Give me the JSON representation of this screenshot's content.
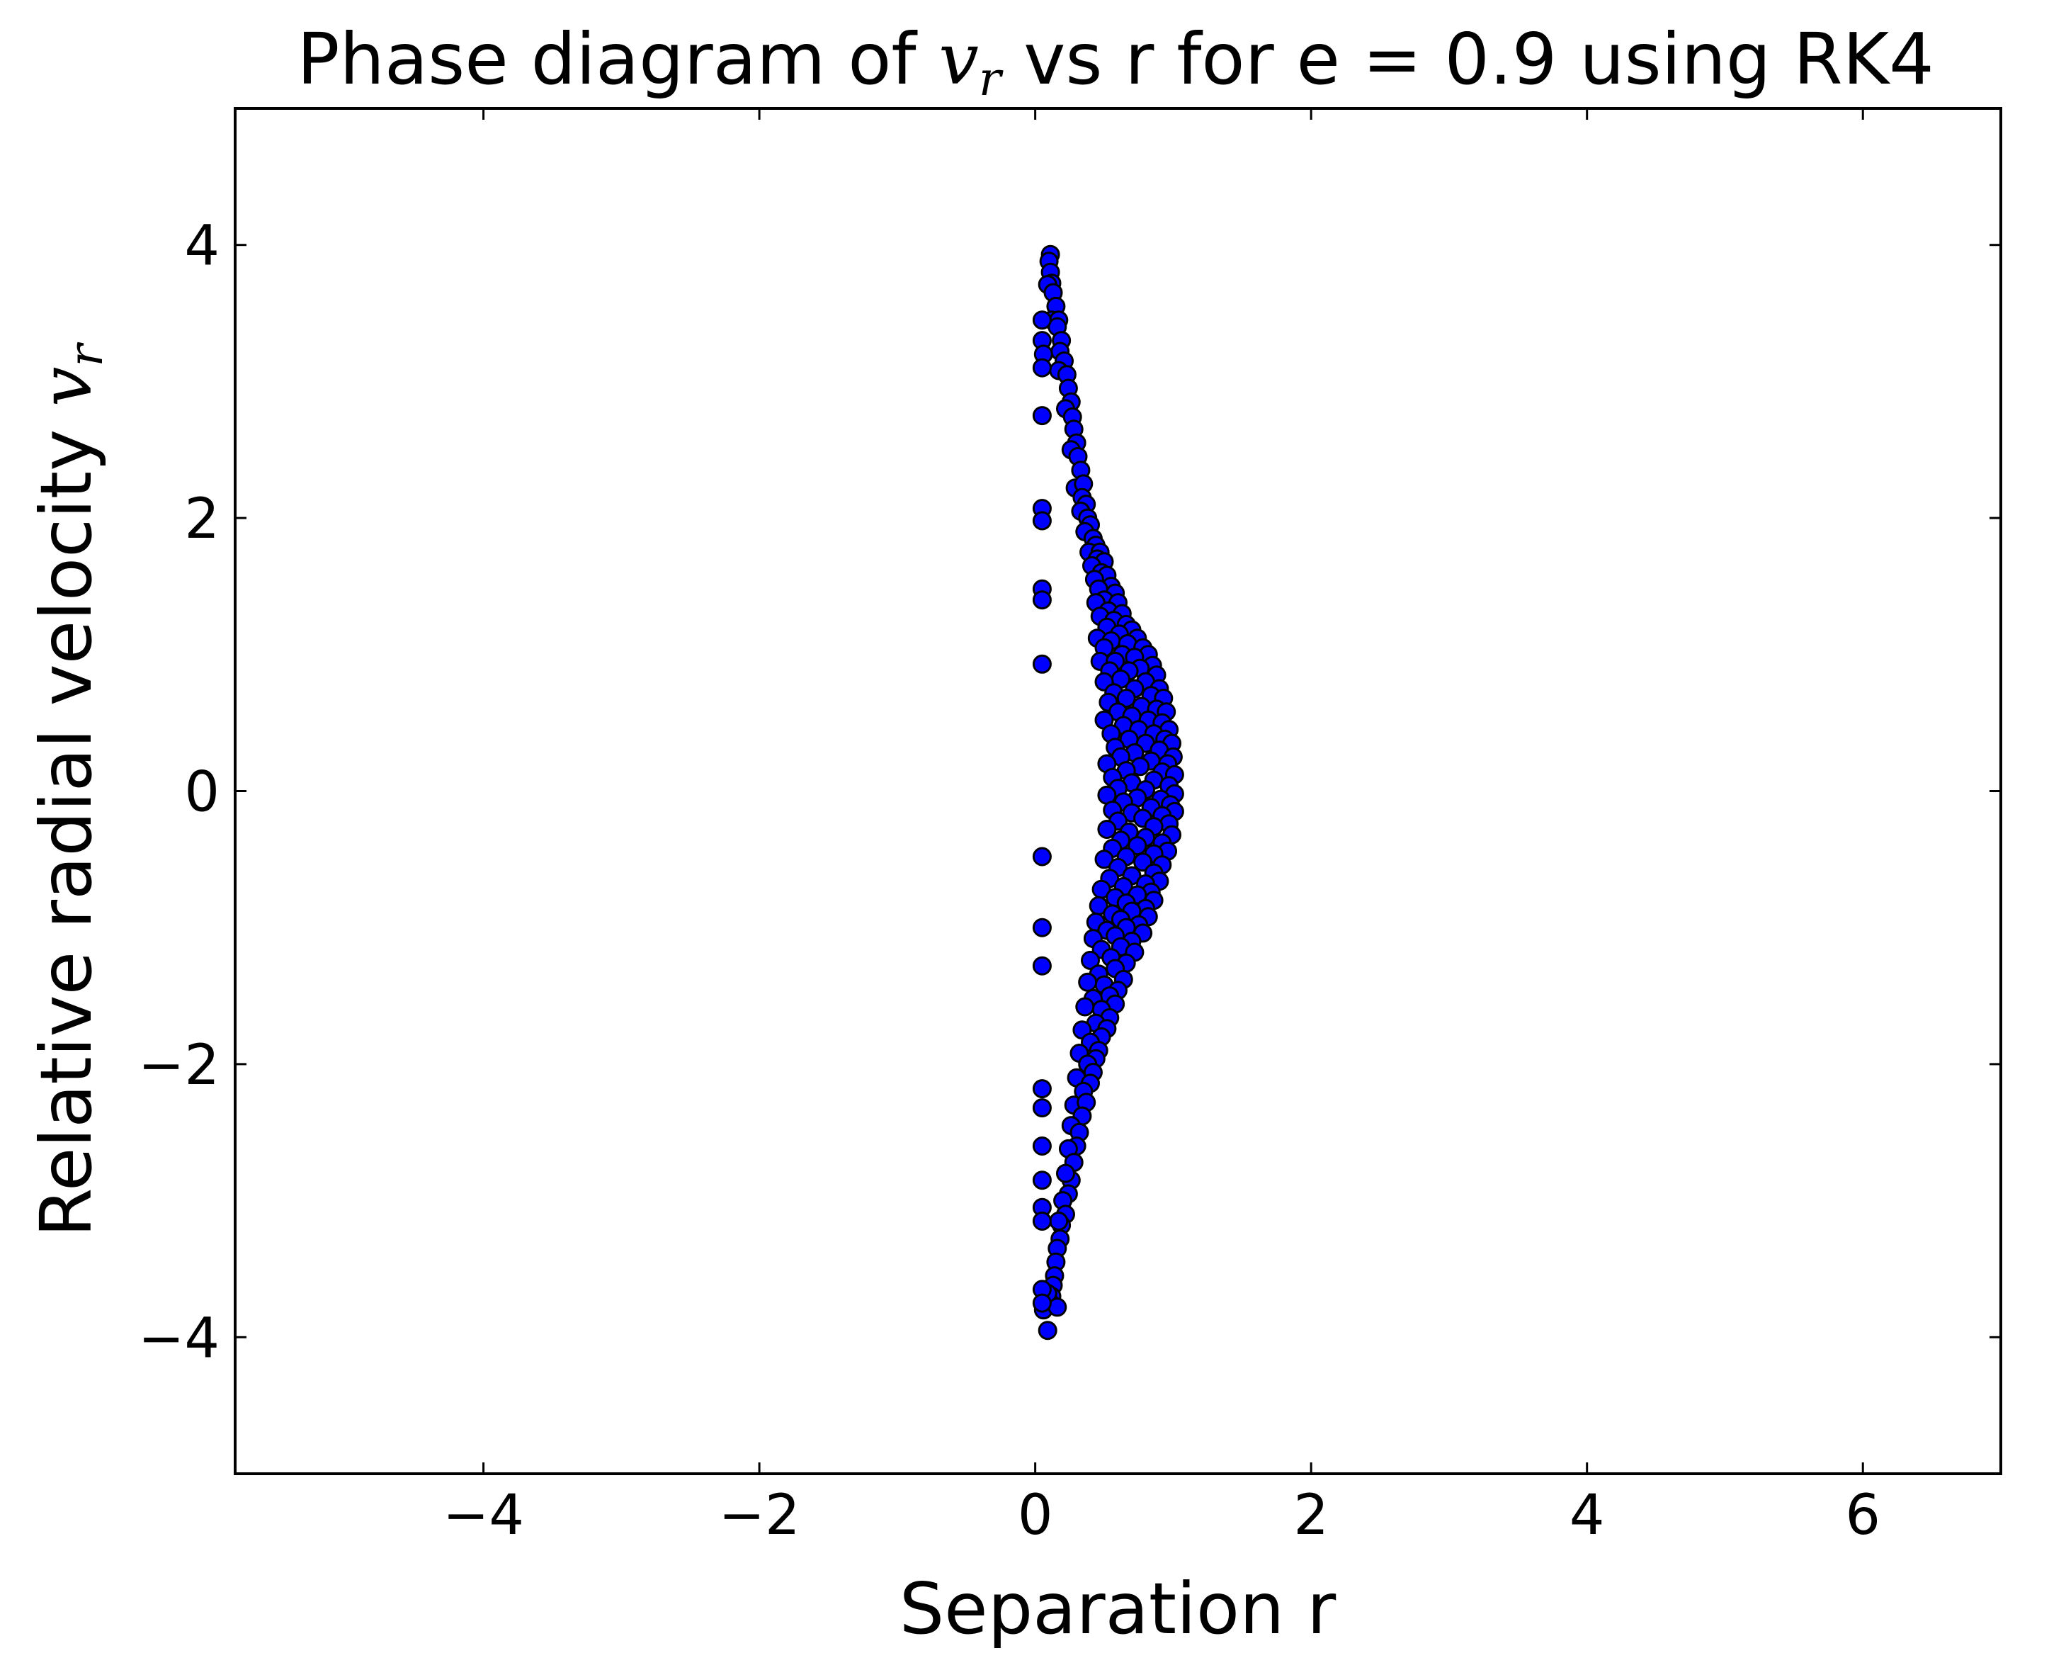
{
  "chart_data": {
    "type": "scatter",
    "title": {
      "prefix": "Phase diagram of ",
      "math_base": "v",
      "math_sub": "r",
      "suffix": " vs r for e = 0.9 using RK4"
    },
    "xlabel": "Separation r",
    "ylabel": {
      "prefix": "Relative radial velocity ",
      "math_base": "v",
      "math_sub": "r"
    },
    "xlim": [
      -5.8,
      7.0
    ],
    "ylim": [
      -5.0,
      5.0
    ],
    "x_ticks": [
      {
        "value": -4,
        "label": "−4"
      },
      {
        "value": -2,
        "label": "−2"
      },
      {
        "value": 0,
        "label": "0"
      },
      {
        "value": 2,
        "label": "2"
      },
      {
        "value": 4,
        "label": "4"
      },
      {
        "value": 6,
        "label": "6"
      }
    ],
    "y_ticks": [
      {
        "value": -4,
        "label": "−4"
      },
      {
        "value": -2,
        "label": "−2"
      },
      {
        "value": 0,
        "label": "0"
      },
      {
        "value": 2,
        "label": "2"
      },
      {
        "value": 4,
        "label": "4"
      }
    ],
    "grid": false,
    "legend": "none",
    "marker_color": "#0000ff",
    "marker_edge_color": "#000000",
    "series": [
      {
        "points": [
          [
            0.11,
            3.93
          ],
          [
            0.1,
            3.88
          ],
          [
            0.11,
            3.8
          ],
          [
            0.12,
            3.72
          ],
          [
            0.09,
            3.71
          ],
          [
            0.13,
            3.65
          ],
          [
            0.15,
            3.55
          ],
          [
            0.12,
            3.45
          ],
          [
            0.17,
            3.45
          ],
          [
            0.16,
            3.4
          ],
          [
            0.19,
            3.3
          ],
          [
            0.18,
            3.22
          ],
          [
            0.21,
            3.15
          ],
          [
            0.17,
            3.08
          ],
          [
            0.23,
            3.05
          ],
          [
            0.24,
            2.95
          ],
          [
            0.26,
            2.85
          ],
          [
            0.22,
            2.8
          ],
          [
            0.27,
            2.74
          ],
          [
            0.28,
            2.65
          ],
          [
            0.3,
            2.55
          ],
          [
            0.26,
            2.5
          ],
          [
            0.31,
            2.45
          ],
          [
            0.33,
            2.35
          ],
          [
            0.29,
            2.22
          ],
          [
            0.35,
            2.25
          ],
          [
            0.34,
            2.15
          ],
          [
            0.37,
            2.1
          ],
          [
            0.33,
            2.05
          ],
          [
            0.38,
            2.0
          ],
          [
            0.4,
            1.95
          ],
          [
            0.36,
            1.9
          ],
          [
            0.42,
            1.85
          ],
          [
            0.44,
            1.8
          ],
          [
            0.39,
            1.75
          ],
          [
            0.47,
            1.75
          ],
          [
            0.45,
            1.7
          ],
          [
            0.5,
            1.68
          ],
          [
            0.41,
            1.65
          ],
          [
            0.48,
            1.6
          ],
          [
            0.52,
            1.58
          ],
          [
            0.43,
            1.55
          ],
          [
            0.55,
            1.5
          ],
          [
            0.46,
            1.48
          ],
          [
            0.58,
            1.45
          ],
          [
            0.5,
            1.4
          ],
          [
            0.44,
            1.38
          ],
          [
            0.6,
            1.38
          ],
          [
            0.53,
            1.32
          ],
          [
            0.63,
            1.3
          ],
          [
            0.47,
            1.28
          ],
          [
            0.57,
            1.25
          ],
          [
            0.66,
            1.22
          ],
          [
            0.52,
            1.2
          ],
          [
            0.7,
            1.18
          ],
          [
            0.61,
            1.15
          ],
          [
            0.74,
            1.12
          ],
          [
            0.45,
            1.12
          ],
          [
            0.55,
            1.1
          ],
          [
            0.67,
            1.08
          ],
          [
            0.78,
            1.05
          ],
          [
            0.5,
            1.05
          ],
          [
            0.63,
            1.0
          ],
          [
            0.82,
            1.0
          ],
          [
            0.72,
            0.98
          ],
          [
            0.47,
            0.95
          ],
          [
            0.58,
            0.95
          ],
          [
            0.85,
            0.92
          ],
          [
            0.76,
            0.9
          ],
          [
            0.54,
            0.88
          ],
          [
            0.68,
            0.88
          ],
          [
            0.88,
            0.85
          ],
          [
            0.62,
            0.82
          ],
          [
            0.8,
            0.8
          ],
          [
            0.5,
            0.8
          ],
          [
            0.9,
            0.75
          ],
          [
            0.72,
            0.75
          ],
          [
            0.57,
            0.72
          ],
          [
            0.84,
            0.7
          ],
          [
            0.93,
            0.68
          ],
          [
            0.66,
            0.68
          ],
          [
            0.53,
            0.65
          ],
          [
            0.77,
            0.62
          ],
          [
            0.88,
            0.6
          ],
          [
            0.95,
            0.58
          ],
          [
            0.6,
            0.58
          ],
          [
            0.7,
            0.55
          ],
          [
            0.82,
            0.52
          ],
          [
            0.5,
            0.52
          ],
          [
            0.92,
            0.5
          ],
          [
            0.64,
            0.48
          ],
          [
            0.97,
            0.45
          ],
          [
            0.75,
            0.45
          ],
          [
            0.55,
            0.42
          ],
          [
            0.86,
            0.42
          ],
          [
            0.68,
            0.38
          ],
          [
            0.94,
            0.38
          ],
          [
            0.99,
            0.35
          ],
          [
            0.8,
            0.35
          ],
          [
            0.58,
            0.32
          ],
          [
            0.9,
            0.3
          ],
          [
            0.72,
            0.28
          ],
          [
            1.0,
            0.25
          ],
          [
            0.62,
            0.25
          ],
          [
            0.84,
            0.22
          ],
          [
            0.96,
            0.2
          ],
          [
            0.52,
            0.2
          ],
          [
            0.76,
            0.18
          ],
          [
            0.66,
            0.15
          ],
          [
            0.92,
            0.14
          ],
          [
            1.01,
            0.12
          ],
          [
            0.56,
            0.1
          ],
          [
            0.86,
            0.08
          ],
          [
            0.7,
            0.06
          ],
          [
            0.97,
            0.04
          ],
          [
            0.6,
            0.02
          ],
          [
            0.8,
            0.01
          ],
          [
            1.01,
            -0.02
          ],
          [
            0.52,
            -0.03
          ],
          [
            0.74,
            -0.05
          ],
          [
            0.91,
            -0.06
          ],
          [
            0.64,
            -0.08
          ],
          [
            0.98,
            -0.1
          ],
          [
            0.84,
            -0.12
          ],
          [
            0.56,
            -0.14
          ],
          [
            1.01,
            -0.15
          ],
          [
            0.7,
            -0.16
          ],
          [
            0.92,
            -0.18
          ],
          [
            0.78,
            -0.2
          ],
          [
            0.6,
            -0.22
          ],
          [
            0.97,
            -0.24
          ],
          [
            0.86,
            -0.26
          ],
          [
            0.52,
            -0.28
          ],
          [
            0.68,
            -0.3
          ],
          [
            0.99,
            -0.32
          ],
          [
            0.8,
            -0.34
          ],
          [
            0.62,
            -0.36
          ],
          [
            0.92,
            -0.38
          ],
          [
            0.74,
            -0.4
          ],
          [
            0.56,
            -0.42
          ],
          [
            0.96,
            -0.44
          ],
          [
            0.86,
            -0.46
          ],
          [
            0.66,
            -0.48
          ],
          [
            0.5,
            -0.5
          ],
          [
            0.78,
            -0.52
          ],
          [
            0.92,
            -0.54
          ],
          [
            0.6,
            -0.56
          ],
          [
            0.86,
            -0.6
          ],
          [
            0.7,
            -0.62
          ],
          [
            0.54,
            -0.64
          ],
          [
            0.9,
            -0.66
          ],
          [
            0.8,
            -0.68
          ],
          [
            0.64,
            -0.7
          ],
          [
            0.48,
            -0.72
          ],
          [
            0.84,
            -0.74
          ],
          [
            0.74,
            -0.76
          ],
          [
            0.58,
            -0.78
          ],
          [
            0.86,
            -0.8
          ],
          [
            0.66,
            -0.82
          ],
          [
            0.46,
            -0.84
          ],
          [
            0.8,
            -0.86
          ],
          [
            0.7,
            -0.88
          ],
          [
            0.56,
            -0.9
          ],
          [
            0.82,
            -0.92
          ],
          [
            0.62,
            -0.94
          ],
          [
            0.44,
            -0.96
          ],
          [
            0.75,
            -0.98
          ],
          [
            0.66,
            -1.0
          ],
          [
            0.52,
            -1.02
          ],
          [
            0.78,
            -1.04
          ],
          [
            0.58,
            -1.06
          ],
          [
            0.42,
            -1.08
          ],
          [
            0.7,
            -1.1
          ],
          [
            0.62,
            -1.14
          ],
          [
            0.48,
            -1.16
          ],
          [
            0.72,
            -1.18
          ],
          [
            0.55,
            -1.22
          ],
          [
            0.4,
            -1.24
          ],
          [
            0.66,
            -1.26
          ],
          [
            0.58,
            -1.3
          ],
          [
            0.46,
            -1.34
          ],
          [
            0.64,
            -1.38
          ],
          [
            0.5,
            -1.42
          ],
          [
            0.38,
            -1.4
          ],
          [
            0.6,
            -1.46
          ],
          [
            0.54,
            -1.5
          ],
          [
            0.42,
            -1.52
          ],
          [
            0.58,
            -1.56
          ],
          [
            0.48,
            -1.6
          ],
          [
            0.36,
            -1.58
          ],
          [
            0.54,
            -1.66
          ],
          [
            0.44,
            -1.7
          ],
          [
            0.52,
            -1.74
          ],
          [
            0.34,
            -1.75
          ],
          [
            0.48,
            -1.8
          ],
          [
            0.4,
            -1.84
          ],
          [
            0.46,
            -1.9
          ],
          [
            0.32,
            -1.92
          ],
          [
            0.44,
            -1.96
          ],
          [
            0.38,
            -2.0
          ],
          [
            0.42,
            -2.06
          ],
          [
            0.3,
            -2.1
          ],
          [
            0.4,
            -2.14
          ],
          [
            0.35,
            -2.2
          ],
          [
            0.28,
            -2.3
          ],
          [
            0.37,
            -2.28
          ],
          [
            0.34,
            -2.38
          ],
          [
            0.26,
            -2.45
          ],
          [
            0.32,
            -2.5
          ],
          [
            0.3,
            -2.6
          ],
          [
            0.24,
            -2.62
          ],
          [
            0.28,
            -2.72
          ],
          [
            0.26,
            -2.85
          ],
          [
            0.22,
            -2.8
          ],
          [
            0.24,
            -2.95
          ],
          [
            0.2,
            -3.0
          ],
          [
            0.22,
            -3.1
          ],
          [
            0.19,
            -3.18
          ],
          [
            0.17,
            -3.15
          ],
          [
            0.18,
            -3.28
          ],
          [
            0.16,
            -3.35
          ],
          [
            0.15,
            -3.45
          ],
          [
            0.14,
            -3.55
          ],
          [
            0.13,
            -3.62
          ],
          [
            0.12,
            -3.7
          ],
          [
            0.11,
            -3.75
          ],
          [
            0.09,
            -3.68
          ],
          [
            0.09,
            -3.95
          ],
          [
            0.06,
            -3.8
          ],
          [
            0.16,
            -3.78
          ],
          [
            0.05,
            3.45
          ],
          [
            0.05,
            3.3
          ],
          [
            0.06,
            3.2
          ],
          [
            0.05,
            3.1
          ],
          [
            0.05,
            2.75
          ],
          [
            0.05,
            2.07
          ],
          [
            0.05,
            1.98
          ],
          [
            0.05,
            1.48
          ],
          [
            0.05,
            1.4
          ],
          [
            0.05,
            0.93
          ],
          [
            0.05,
            -0.48
          ],
          [
            0.05,
            -1.0
          ],
          [
            0.05,
            -1.28
          ],
          [
            0.05,
            -2.18
          ],
          [
            0.05,
            -2.32
          ],
          [
            0.05,
            -2.6
          ],
          [
            0.05,
            -2.85
          ],
          [
            0.05,
            -3.05
          ],
          [
            0.05,
            -3.15
          ],
          [
            0.05,
            -3.65
          ],
          [
            0.05,
            -3.75
          ]
        ]
      }
    ]
  }
}
